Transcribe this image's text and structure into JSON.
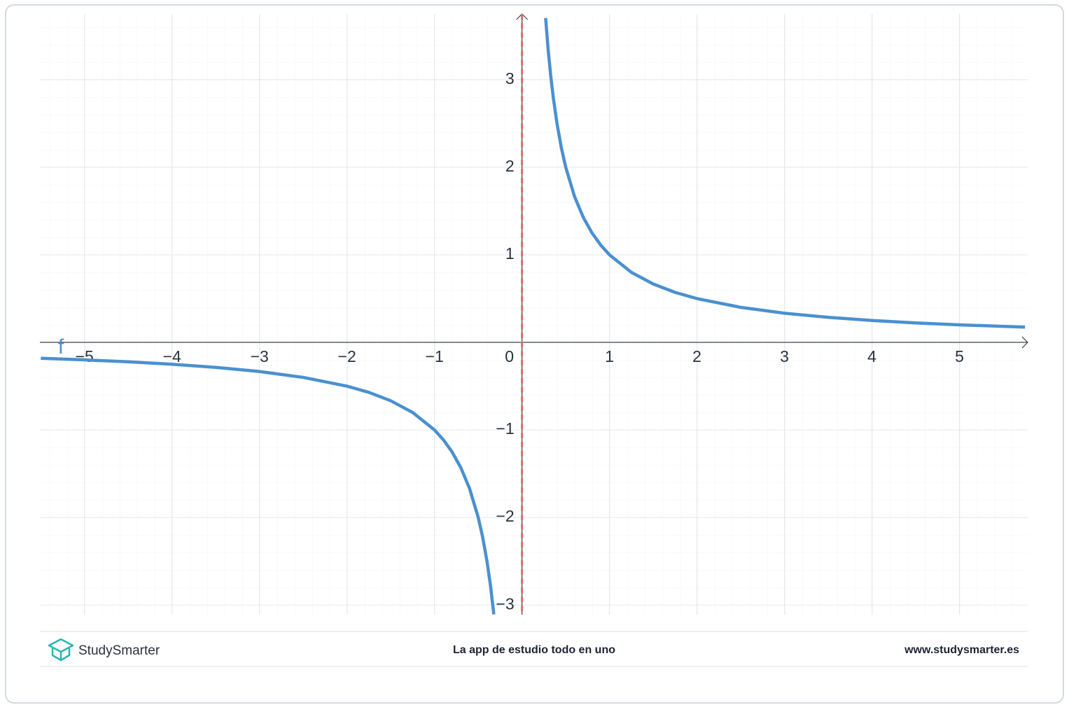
{
  "chart_data": {
    "type": "line",
    "x": [
      -5.5,
      -5,
      -4.5,
      -4,
      -3.5,
      -3,
      -2.5,
      -2,
      -1.75,
      -1.5,
      -1.25,
      -1,
      -0.9,
      -0.8,
      -0.7,
      -0.6,
      -0.5,
      -0.45,
      -0.4,
      -0.36,
      -0.322,
      0,
      0.27,
      0.3,
      0.33,
      0.36,
      0.4,
      0.45,
      0.5,
      0.6,
      0.7,
      0.8,
      0.9,
      1,
      1.25,
      1.5,
      1.75,
      2,
      2.5,
      3,
      3.5,
      4,
      4.5,
      5,
      5.75
    ],
    "series": [
      {
        "name": "f",
        "color": "#4a90d0",
        "values": [
          -0.182,
          -0.2,
          -0.222,
          -0.25,
          -0.286,
          -0.333,
          -0.4,
          -0.5,
          -0.571,
          -0.667,
          -0.8,
          -1,
          -1.111,
          -1.25,
          -1.429,
          -1.667,
          -2,
          -2.222,
          -2.5,
          -2.778,
          -3.106,
          null,
          3.704,
          3.333,
          3.03,
          2.778,
          2.5,
          2.222,
          2,
          1.667,
          1.429,
          1.25,
          1.111,
          1,
          0.8,
          0.667,
          0.571,
          0.5,
          0.4,
          0.333,
          0.286,
          0.25,
          0.222,
          0.2,
          0.174
        ]
      }
    ],
    "xlim": [
      -5.51,
      5.78
    ],
    "ylim": [
      -3.11,
      3.75
    ],
    "xticks": [
      {
        "value": -5,
        "label": "−5"
      },
      {
        "value": -4,
        "label": "−4"
      },
      {
        "value": -3,
        "label": "−3"
      },
      {
        "value": -2,
        "label": "−2"
      },
      {
        "value": -1,
        "label": "−1"
      },
      0,
      1,
      2,
      3,
      4,
      5
    ],
    "yticks": [
      {
        "value": -3,
        "label": "−3"
      },
      {
        "value": -2,
        "label": "−2"
      },
      {
        "value": -1,
        "label": "−1"
      },
      1,
      2,
      3
    ],
    "asymptote": {
      "x": 0,
      "color": "#e06a6a"
    },
    "grid": true
  },
  "footer": {
    "brand": "StudySmarter",
    "tagline": "La app de estudio todo en uno",
    "url": "www.studysmarter.es"
  }
}
